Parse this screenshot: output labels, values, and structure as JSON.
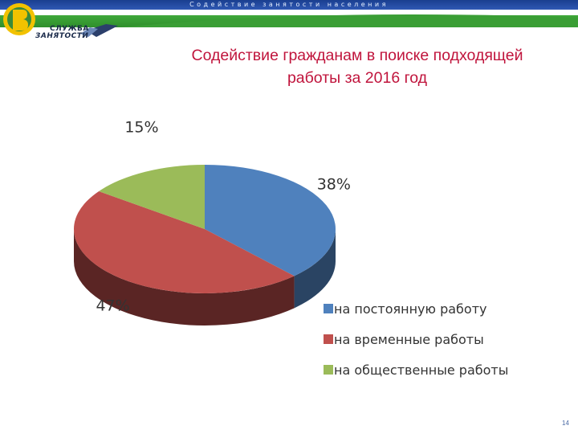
{
  "banner": {
    "text": "Содействие занятости населения"
  },
  "logo": {
    "line1": "СЛУЖБА",
    "line2": "ЗАНЯТОСТИ"
  },
  "title_line1": "Содействие гражданам в поиске подходящей",
  "title_line2": "работы за 2016 год",
  "chart_data": {
    "type": "pie",
    "title": "Содействие гражданам в поиске подходящей работы за 2016 год",
    "slices": [
      {
        "label": "на постоянную работу",
        "value": 38,
        "display": "38%",
        "color": "#4f81bd",
        "side_color": "#2a4463"
      },
      {
        "label": "на временные работы",
        "value": 47,
        "display": "47%",
        "color": "#c0504d",
        "side_color": "#5a2524"
      },
      {
        "label": "на общественные работы",
        "value": 15,
        "display": "15%",
        "color": "#9bbb59",
        "side_color": "#4d5e2b"
      }
    ],
    "legend_position": "bottom-right"
  },
  "page_number": "14"
}
